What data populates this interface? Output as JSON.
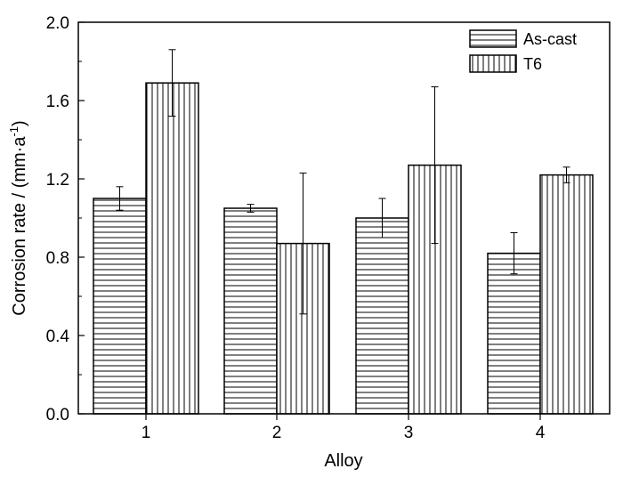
{
  "chart_data": {
    "type": "bar",
    "categories": [
      "1",
      "2",
      "3",
      "4"
    ],
    "series": [
      {
        "name": "As-cast",
        "pattern": "horizontal-lines",
        "values": [
          1.1,
          1.05,
          1.0,
          0.82
        ],
        "errors": [
          0.06,
          0.02,
          0.1,
          0.105
        ]
      },
      {
        "name": "T6",
        "pattern": "vertical-lines",
        "values": [
          1.69,
          0.87,
          1.27,
          1.22
        ],
        "errors": [
          0.17,
          0.36,
          0.4,
          0.04
        ]
      }
    ],
    "xlabel": "Alloy",
    "ylabel": "Corrosion rate / (mm·a",
    "ylabel_superscript": "-1",
    "ylabel_suffix": ")",
    "ylim": [
      0.0,
      2.0
    ],
    "yticks": [
      "0.0",
      "0.4",
      "0.8",
      "1.2",
      "1.6",
      "2.0"
    ],
    "grid": false,
    "legend_position": "top-right",
    "colors": {
      "bar_fill": "#ffffff",
      "stroke": "#000000"
    }
  }
}
